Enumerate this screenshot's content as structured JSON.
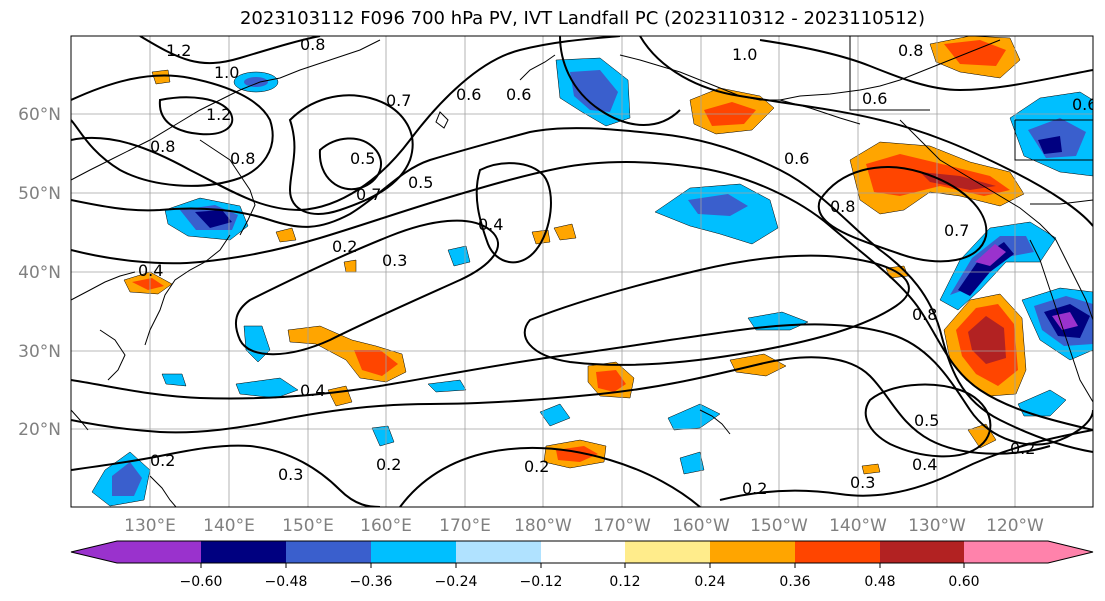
{
  "title": "2023103112 F096 700 hPa PV, IVT Landfall PC (2023110312 - 2023110512)",
  "lat_labels": [
    "60°N",
    "50°N",
    "40°N",
    "30°N",
    "20°N"
  ],
  "lon_labels": [
    "130°E",
    "140°E",
    "150°E",
    "160°E",
    "170°E",
    "180°W",
    "170°W",
    "160°W",
    "150°W",
    "140°W",
    "130°W",
    "120°W"
  ],
  "colorbar": {
    "colors": [
      "#9a32cd",
      "#000080",
      "#3a5fcd",
      "#00bfff",
      "#b0e2ff",
      "#ffffff",
      "#ffec8b",
      "#ffa500",
      "#ff4500",
      "#b22222",
      "#ff82ab"
    ],
    "ticks": [
      "−0.60",
      "−0.48",
      "−0.36",
      "−0.24",
      "−0.12",
      "0.12",
      "0.24",
      "0.36",
      "0.48",
      "0.60"
    ]
  },
  "contour_labels": [
    "1.2",
    "0.8",
    "1.0",
    "1.2",
    "0.8",
    "0.8",
    "0.7",
    "0.6",
    "0.5",
    "0.7",
    "0.5",
    "0.6",
    "0.4",
    "0.2",
    "0.3",
    "0.4",
    "0.3",
    "0.2",
    "0.2",
    "0.4",
    "0.2",
    "1.0",
    "0.8",
    "0.6",
    "0.6",
    "0.8",
    "0.7",
    "0.8",
    "0.5",
    "0.4",
    "0.3",
    "0.2",
    "0.2",
    "0.6"
  ]
}
